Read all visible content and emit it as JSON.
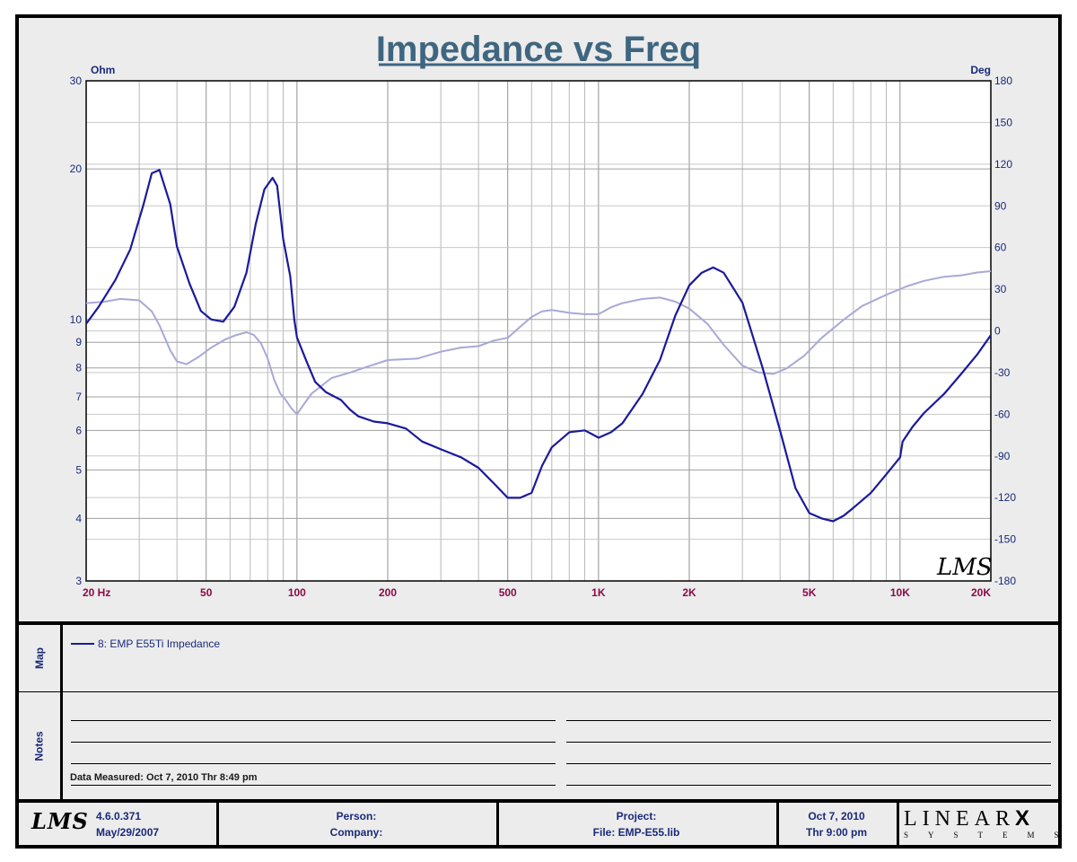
{
  "title": "Impedance vs Freq",
  "chart_data": {
    "type": "line",
    "title": "Impedance vs Freq",
    "x_scale": "log",
    "xlim": [
      20,
      20000
    ],
    "ylim": [
      3,
      30
    ],
    "y_scale": "log",
    "y2lim": [
      -180,
      180
    ],
    "left_unit": "Ohm",
    "right_unit": "Deg",
    "x_tick_labels": [
      {
        "v": 20,
        "t": "20  Hz"
      },
      {
        "v": 50,
        "t": "50"
      },
      {
        "v": 100,
        "t": "100"
      },
      {
        "v": 200,
        "t": "200"
      },
      {
        "v": 500,
        "t": "500"
      },
      {
        "v": 1000,
        "t": "1K"
      },
      {
        "v": 2000,
        "t": "2K"
      },
      {
        "v": 5000,
        "t": "5K"
      },
      {
        "v": 10000,
        "t": "10K"
      },
      {
        "v": 20000,
        "t": "20K"
      }
    ],
    "y_tick_labels": [
      {
        "v": 30,
        "t": "30"
      },
      {
        "v": 20,
        "t": "20"
      },
      {
        "v": 10,
        "t": "10"
      },
      {
        "v": 9,
        "t": "9"
      },
      {
        "v": 8,
        "t": "8"
      },
      {
        "v": 7,
        "t": "7"
      },
      {
        "v": 6,
        "t": "6"
      },
      {
        "v": 5,
        "t": "5"
      },
      {
        "v": 4,
        "t": "4"
      },
      {
        "v": 3,
        "t": "3"
      }
    ],
    "y2_tick_labels": [
      {
        "v": 180,
        "t": "180"
      },
      {
        "v": 150,
        "t": "150"
      },
      {
        "v": 120,
        "t": "120"
      },
      {
        "v": 90,
        "t": "90"
      },
      {
        "v": 60,
        "t": "60"
      },
      {
        "v": 30,
        "t": "30"
      },
      {
        "v": 0,
        "t": "0"
      },
      {
        "v": -30,
        "t": "-30"
      },
      {
        "v": -60,
        "t": "-60"
      },
      {
        "v": -90,
        "t": "-90"
      },
      {
        "v": -120,
        "t": "-120"
      },
      {
        "v": -150,
        "t": "-150"
      },
      {
        "v": -180,
        "t": "-180"
      }
    ],
    "series": [
      {
        "name": "8: EMP E55Ti Impedance",
        "axis": "left",
        "color": "#1a1a9c",
        "x": [
          20,
          22,
          25,
          28,
          31,
          33,
          35,
          38,
          40,
          44,
          48,
          52,
          57,
          62,
          68,
          73,
          78,
          83,
          86,
          90,
          95,
          98,
          100,
          108,
          115,
          125,
          140,
          150,
          160,
          180,
          200,
          230,
          260,
          300,
          350,
          400,
          450,
          500,
          550,
          600,
          650,
          700,
          800,
          900,
          950,
          1000,
          1100,
          1200,
          1400,
          1600,
          1800,
          2000,
          2200,
          2400,
          2600,
          3000,
          3500,
          4000,
          4500,
          5000,
          5500,
          6000,
          6500,
          7000,
          8000,
          9000,
          10000,
          10200,
          11000,
          12000,
          14000,
          16000,
          18000,
          20000
        ],
        "y": [
          9.8,
          10.6,
          12,
          13.8,
          17,
          19.6,
          19.9,
          17,
          14,
          11.8,
          10.4,
          10,
          9.9,
          10.6,
          12.4,
          15.5,
          18.2,
          19.2,
          18.5,
          14.5,
          12.2,
          10,
          9.2,
          8.2,
          7.5,
          7.15,
          6.9,
          6.6,
          6.4,
          6.25,
          6.2,
          6.05,
          5.7,
          5.5,
          5.3,
          5.05,
          4.7,
          4.4,
          4.4,
          4.5,
          5.1,
          5.55,
          5.95,
          6.0,
          5.9,
          5.8,
          5.95,
          6.2,
          7.1,
          8.3,
          10.2,
          11.7,
          12.4,
          12.7,
          12.4,
          10.8,
          8.0,
          6.0,
          4.6,
          4.1,
          4.0,
          3.95,
          4.05,
          4.2,
          4.5,
          4.9,
          5.3,
          5.7,
          6.1,
          6.5,
          7.1,
          7.8,
          8.5,
          9.3
        ]
      },
      {
        "name": "phase",
        "axis": "right",
        "color": "#a8a8d8",
        "x": [
          20,
          23,
          26,
          30,
          33,
          35,
          38,
          40,
          43,
          47,
          52,
          58,
          63,
          68,
          72,
          76,
          80,
          84,
          88,
          92,
          96,
          100,
          106,
          112,
          120,
          130,
          150,
          170,
          200,
          250,
          300,
          350,
          400,
          450,
          500,
          550,
          600,
          650,
          700,
          800,
          900,
          1000,
          1100,
          1200,
          1400,
          1600,
          1800,
          2000,
          2300,
          2600,
          3000,
          3400,
          3800,
          4200,
          4800,
          5500,
          6500,
          7500,
          9000,
          10500,
          12000,
          14000,
          16000,
          18000,
          20000
        ],
        "y": [
          20,
          21,
          23,
          22,
          14,
          4,
          -14,
          -22,
          -24,
          -19,
          -12,
          -6,
          -3,
          -1,
          -3,
          -9,
          -20,
          -35,
          -45,
          -50,
          -56,
          -60,
          -52,
          -45,
          -40,
          -34,
          -30,
          -26,
          -21,
          -20,
          -15,
          -12,
          -11,
          -7,
          -5,
          3,
          10,
          14,
          15,
          13,
          12,
          12,
          17,
          20,
          23,
          24,
          21,
          16,
          5,
          -10,
          -25,
          -30,
          -31,
          -27,
          -18,
          -5,
          8,
          18,
          26,
          32,
          36,
          39,
          40,
          42,
          43
        ]
      }
    ]
  },
  "map": {
    "label": "Map",
    "legend": "8: EMP E55Ti Impedance"
  },
  "notes": {
    "label": "Notes",
    "data_measured": "Data Measured: Oct  7, 2010  Thr  8:49 pm"
  },
  "footer": {
    "logo": "LMS",
    "version": "4.6.0.371",
    "version_date": "May/29/2007",
    "person_label": "Person:",
    "company_label": "Company:",
    "project_label": "Project:",
    "file_label": "File: EMP-E55.lib",
    "date": "Oct  7, 2010",
    "time": "Thr  9:00 pm",
    "brand_main": "LINEAR",
    "brand_x": "X",
    "brand_sub": "SYSTEMS"
  }
}
